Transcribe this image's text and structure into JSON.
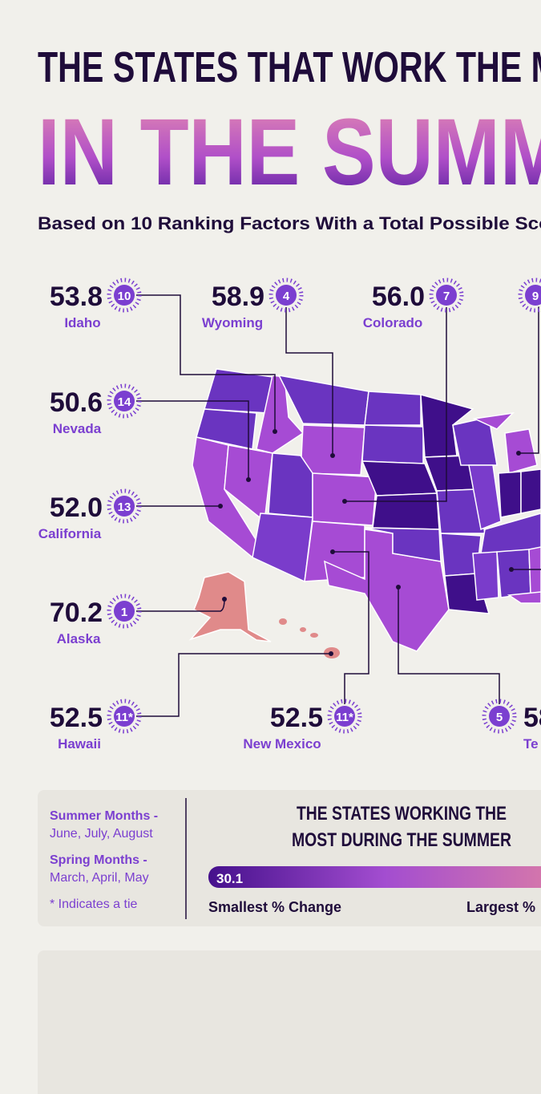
{
  "header": {
    "title_line1": "THE STATES THAT WORK THE M",
    "title_line2": "IN THE SUMM",
    "subtitle": "Based on 10 Ranking Factors With a Total Possible Sco"
  },
  "callouts": [
    {
      "score": "53.8",
      "rank": "10",
      "state": "Idaho"
    },
    {
      "score": "58.9",
      "rank": "4",
      "state": "Wyoming"
    },
    {
      "score": "56.0",
      "rank": "7",
      "state": "Colorado"
    },
    {
      "rank": "9"
    },
    {
      "score": "50.6",
      "rank": "14",
      "state": "Nevada"
    },
    {
      "score": "52.0",
      "rank": "13",
      "state": "California"
    },
    {
      "score": "70.2",
      "rank": "1",
      "state": "Alaska"
    },
    {
      "score": "52.5",
      "rank": "11*",
      "state": "Hawaii"
    },
    {
      "score": "52.5",
      "rank": "11*",
      "state": "New Mexico"
    },
    {
      "score": "58",
      "rank": "5",
      "state": "Te"
    }
  ],
  "legend": {
    "summer_label": "Summer Months -",
    "summer_months": "June, July, August",
    "spring_label": "Spring Months -",
    "spring_months": "March, April, May",
    "tie_note": "* Indicates a tie",
    "title_line1": "THE STATES WORKING THE",
    "title_line2": "MOST DURING THE SUMMER",
    "min_value": "30.1",
    "min_label": "Smallest % Change",
    "max_label": "Largest %"
  }
}
